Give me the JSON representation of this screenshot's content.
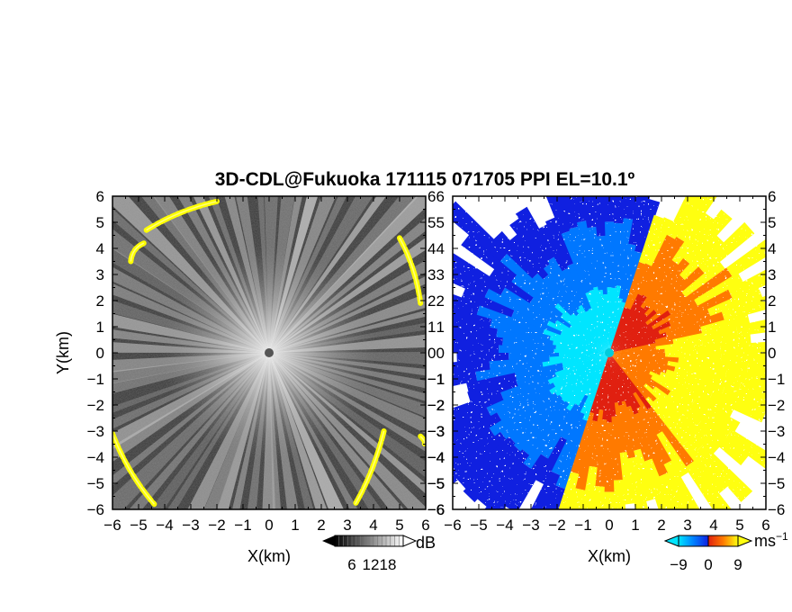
{
  "title": "3D-CDL@Fukuoka 171115 071705 PPI EL=10.1º",
  "chart_data": [
    {
      "type": "heatmap",
      "quantity": "SNR",
      "xlabel": "X(km)",
      "ylabel": "Y(km)",
      "xlim": [
        -6,
        6
      ],
      "ylim": [
        -6,
        6
      ],
      "x_ticks": [
        "−6",
        "−5",
        "−4",
        "−3",
        "−2",
        "−1",
        "0",
        "1",
        "2",
        "3",
        "4",
        "5",
        "6"
      ],
      "y_ticks": [
        "6",
        "5",
        "4",
        "3",
        "2",
        "1",
        "0",
        "−1",
        "−2",
        "−3",
        "−4",
        "−5",
        "−6"
      ],
      "colorbar": {
        "unit": "dB",
        "ticks": [
          6,
          12,
          18
        ],
        "tick_labels": [
          "6",
          "12",
          "18"
        ],
        "colormap": "grayscale",
        "low_color": "#000000",
        "high_color": "#ffffff"
      },
      "highlight_color": "#ffff00",
      "highlight_arcs": [
        {
          "from": [
            -4.7,
            4.7
          ],
          "to": [
            -2.0,
            5.8
          ]
        },
        {
          "from": [
            -5.3,
            3.5
          ],
          "to": [
            -4.8,
            4.2
          ]
        },
        {
          "from": [
            5.0,
            4.4
          ],
          "to": [
            5.8,
            1.9
          ]
        },
        {
          "from": [
            -6.0,
            -3.1
          ],
          "to": [
            -4.4,
            -5.8
          ]
        },
        {
          "from": [
            4.4,
            -3.0
          ],
          "to": [
            3.3,
            -5.8
          ]
        },
        {
          "from": [
            5.8,
            -3.2
          ],
          "to": [
            5.9,
            -3.5
          ]
        }
      ]
    },
    {
      "type": "heatmap",
      "quantity": "radial velocity",
      "xlabel": "X(km)",
      "xlim": [
        -6,
        6
      ],
      "ylim": [
        -6,
        6
      ],
      "x_ticks": [
        "−6",
        "−5",
        "−4",
        "−3",
        "−2",
        "−1",
        "0",
        "1",
        "2",
        "3",
        "4",
        "5",
        "6"
      ],
      "y_ticks": [
        "6",
        "5",
        "4",
        "3",
        "2",
        "1",
        "0",
        "−1",
        "−2",
        "−3",
        "−4",
        "−5",
        "−6"
      ],
      "colorbar": {
        "unit": "ms⁻¹",
        "ticks": [
          -9,
          0,
          9
        ],
        "tick_labels": [
          "−9",
          "0",
          "9"
        ],
        "colormap": "cyan-blue-red-yellow",
        "negative_colors": [
          "#00e5ff",
          "#0077ff",
          "#1020e0"
        ],
        "positive_colors": [
          "#e02010",
          "#ff7a00",
          "#ffff10"
        ]
      },
      "wind_direction_deg": 20
    }
  ]
}
